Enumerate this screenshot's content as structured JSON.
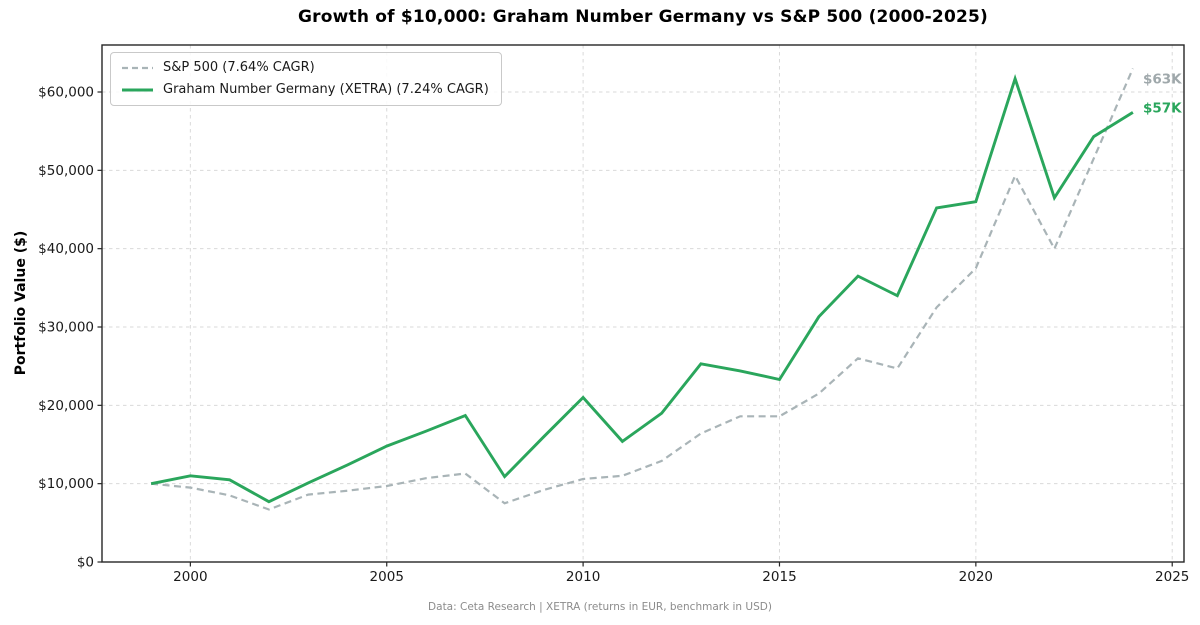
{
  "chart_data": {
    "type": "line",
    "title": "Growth of $10,000: Graham Number Germany vs S&P 500 (2000-2025)",
    "ylabel": "Portfolio Value ($)",
    "xlabel": "",
    "footer": "Data: Ceta Research | XETRA (returns in EUR, benchmark in USD)",
    "grid": true,
    "legend_position": "upper left",
    "xlim": [
      1997.75,
      2025.3
    ],
    "ylim": [
      0,
      66000
    ],
    "x_ticks": [
      2000,
      2005,
      2010,
      2015,
      2020,
      2025
    ],
    "y_ticks": [
      {
        "value": 0,
        "label": "$0"
      },
      {
        "value": 10000,
        "label": "$10,000"
      },
      {
        "value": 20000,
        "label": "$20,000"
      },
      {
        "value": 30000,
        "label": "$30,000"
      },
      {
        "value": 40000,
        "label": "$40,000"
      },
      {
        "value": 50000,
        "label": "$50,000"
      },
      {
        "value": 60000,
        "label": "$60,000"
      }
    ],
    "x": [
      1999,
      2000,
      2001,
      2002,
      2003,
      2004,
      2005,
      2006,
      2007,
      2008,
      2009,
      2010,
      2011,
      2012,
      2013,
      2014,
      2015,
      2016,
      2017,
      2018,
      2019,
      2020,
      2021,
      2022,
      2023,
      2024
    ],
    "series": [
      {
        "name": "S&P 500 (7.64% CAGR)",
        "color": "#a9b4b7",
        "style": "dashed",
        "values": [
          10000,
          9500,
          8500,
          6700,
          8600,
          9100,
          9700,
          10700,
          11300,
          7500,
          9200,
          10600,
          11000,
          12900,
          16400,
          18600,
          18600,
          21500,
          26000,
          24700,
          32500,
          37500,
          49300,
          40000,
          51500,
          63000
        ]
      },
      {
        "name": "Graham Number Germany (XETRA) (7.24% CAGR)",
        "color": "#2aa65c",
        "style": "solid",
        "values": [
          10000,
          11000,
          10500,
          7700,
          10100,
          12400,
          14800,
          16700,
          18700,
          10900,
          16000,
          21000,
          15400,
          19000,
          25300,
          24400,
          23300,
          31300,
          36500,
          34000,
          45200,
          46000,
          61700,
          46500,
          54300,
          57400
        ]
      }
    ],
    "end_labels": [
      {
        "text": "$63K",
        "value": 63000,
        "color": "#9fa8ab"
      },
      {
        "text": "$57K",
        "value": 57400,
        "color": "#2aa65c"
      }
    ],
    "colors": {
      "grid": "#dadada",
      "spine": "#262626",
      "tick_label": "#1a1a1a"
    }
  }
}
